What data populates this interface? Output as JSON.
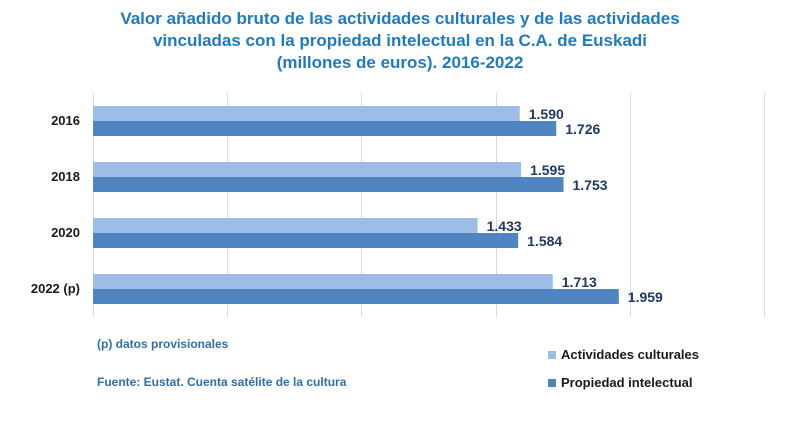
{
  "colors": {
    "title": "#1f7ac0",
    "series_light": "#9ebde6",
    "series_dark": "#4f86c2",
    "label": "#1f3864",
    "note": "#2e6fa8",
    "grid": "#d9d9d9"
  },
  "chart_data": {
    "type": "bar",
    "orientation": "horizontal",
    "title_lines": [
      "Valor añadido bruto de las actividades culturales y de las actividades",
      "vinculadas con la propiedad intelectual en la C.A. de Euskadi",
      "(millones de euros). 2016-2022"
    ],
    "categories": [
      "2016",
      "2018",
      "2020",
      "2022 (p)"
    ],
    "series": [
      {
        "name": "Actividades culturales",
        "values": [
          1590,
          1595,
          1433,
          1713
        ],
        "labels": [
          "1.590",
          "1.595",
          "1.433",
          "1.713"
        ]
      },
      {
        "name": "Propiedad intelectual",
        "values": [
          1726,
          1753,
          1584,
          1959
        ],
        "labels": [
          "1.726",
          "1.753",
          "1.584",
          "1.959"
        ]
      }
    ],
    "xlim": [
      0,
      2500
    ],
    "grid_step": 500,
    "grid": true,
    "xlabel": "",
    "ylabel": "",
    "legend_position": "bottom-right"
  },
  "notes": {
    "provisional": "(p) datos provisionales",
    "source": "Fuente: Eustat. Cuenta satélite de la cultura"
  }
}
